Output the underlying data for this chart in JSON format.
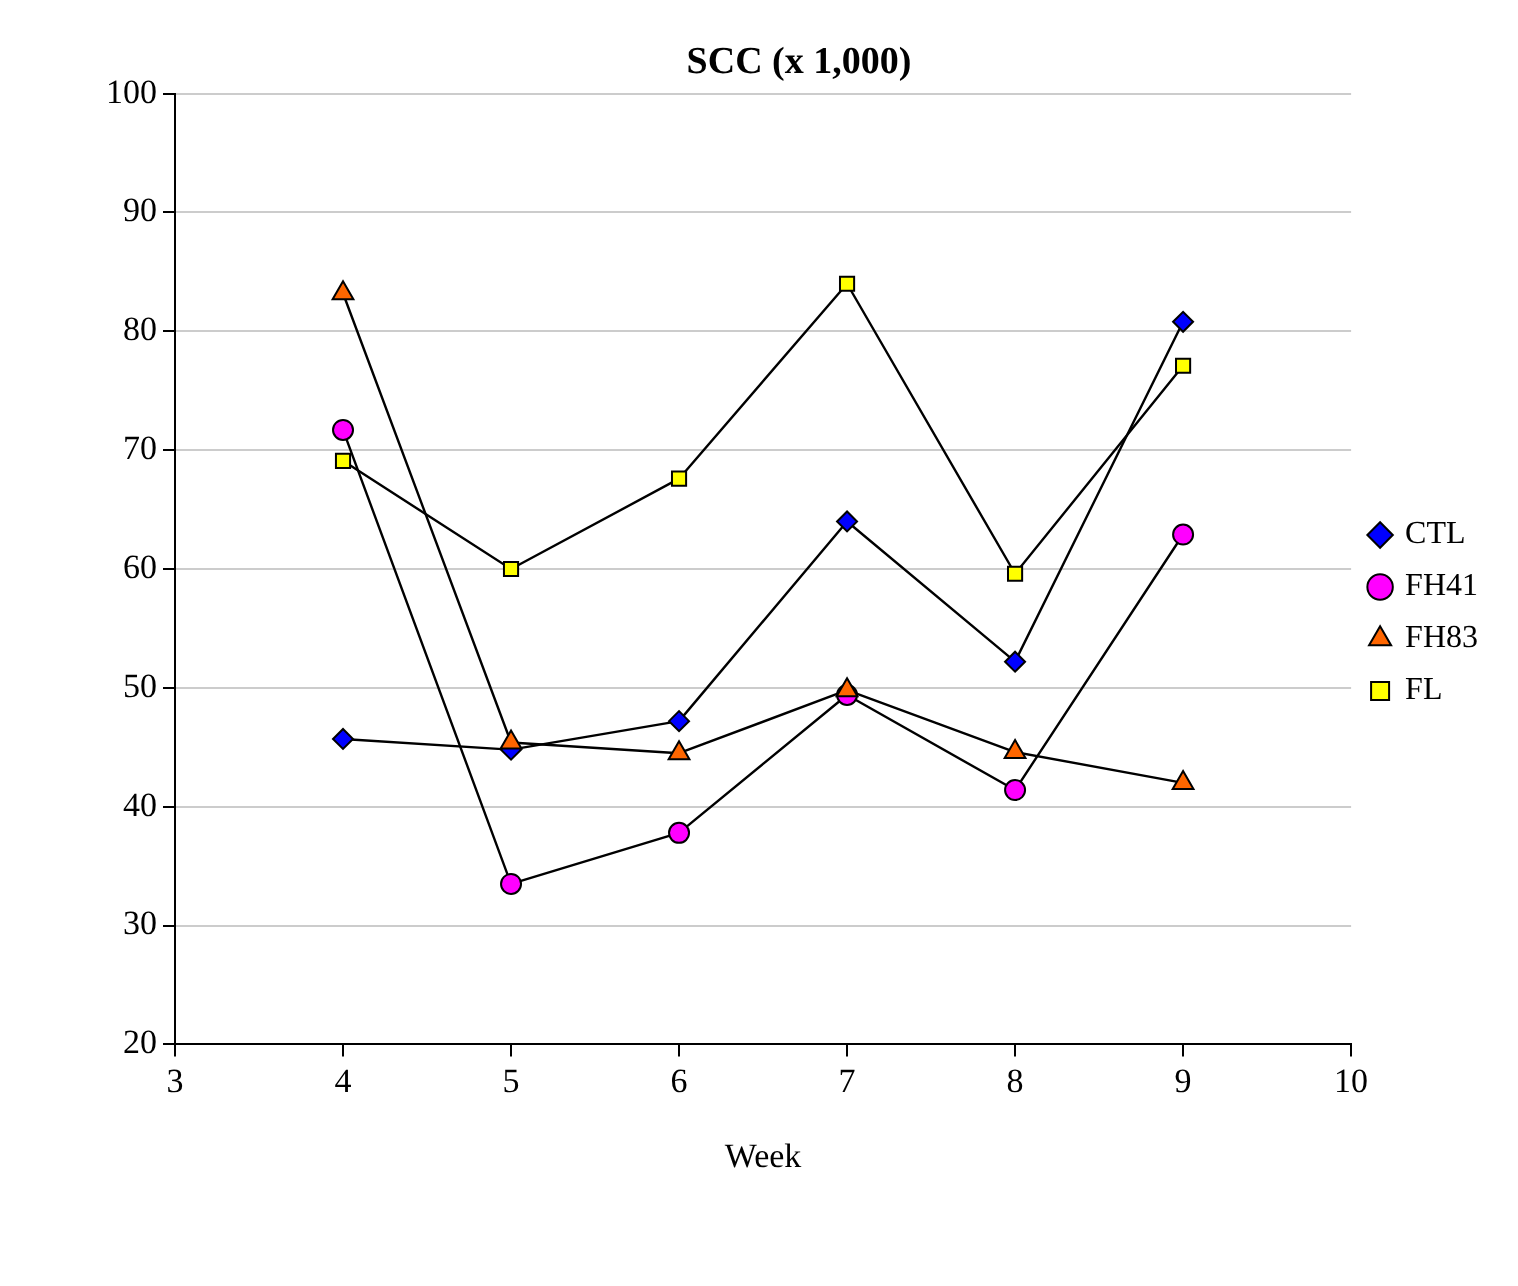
{
  "chart_data": {
    "type": "line",
    "title": "SCC (x 1,000)",
    "xlabel": "Week",
    "x": [
      4,
      5,
      6,
      7,
      8,
      9
    ],
    "series": [
      {
        "name": "CTL",
        "color": "#0000ff",
        "marker": "diamond",
        "values": [
          45.7,
          44.8,
          47.2,
          64.0,
          52.2,
          80.8
        ]
      },
      {
        "name": "FH41",
        "color": "#ff00ff",
        "marker": "circle",
        "values": [
          71.7,
          33.5,
          37.8,
          49.4,
          41.4,
          62.9
        ]
      },
      {
        "name": "FH83",
        "color": "#ff6600",
        "marker": "triangle",
        "values": [
          83.2,
          45.4,
          44.5,
          49.8,
          44.6,
          42.0
        ]
      },
      {
        "name": "FL",
        "color": "#ffff00",
        "marker": "square",
        "values": [
          69.1,
          60.0,
          67.6,
          84.0,
          59.6,
          77.1
        ]
      }
    ],
    "xlim": [
      3,
      10
    ],
    "xticks": [
      3,
      4,
      5,
      6,
      7,
      8,
      9,
      10
    ],
    "ylim": [
      20,
      100
    ],
    "yticks": [
      20,
      30,
      40,
      50,
      60,
      70,
      80,
      90,
      100
    ],
    "grid": "y",
    "legend": "right",
    "line_style": "solid"
  }
}
